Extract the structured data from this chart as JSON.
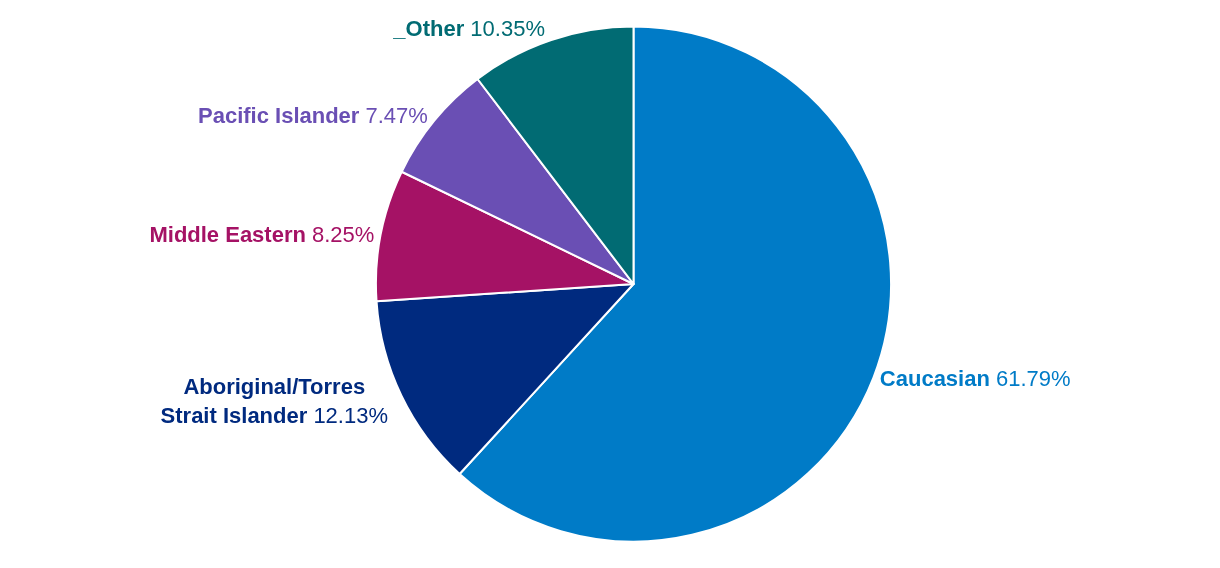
{
  "chart_data": {
    "type": "pie",
    "categories": [
      "Caucasian",
      "Aboriginal/Torres Strait Islander",
      "Middle Eastern",
      "Pacific Islander",
      "_Other"
    ],
    "values": [
      61.79,
      12.13,
      8.25,
      7.47,
      10.35
    ],
    "value_labels": [
      "61.79%",
      "12.13%",
      "8.25%",
      "7.47%",
      "10.35%"
    ],
    "colors": [
      "#007bc7",
      "#002a7f",
      "#a51265",
      "#6a4fb4",
      "#016b73"
    ]
  }
}
